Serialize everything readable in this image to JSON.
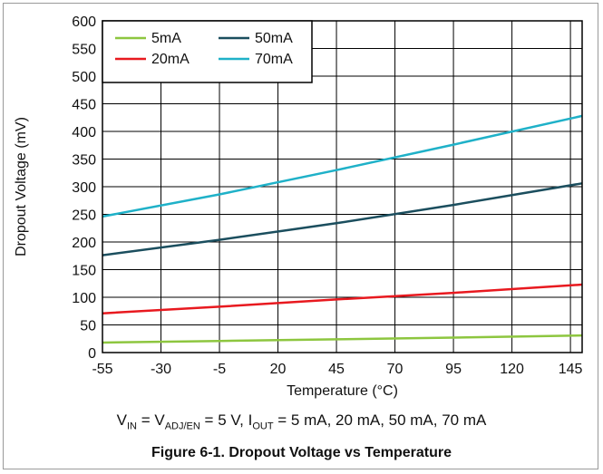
{
  "chart_data": {
    "type": "line",
    "xlabel": "Temperature (°C)",
    "ylabel": "Dropout Voltage (mV)",
    "xlim": [
      -55,
      150
    ],
    "ylim": [
      0,
      600
    ],
    "xticks": [
      -55,
      -30,
      -5,
      20,
      45,
      70,
      95,
      120,
      145
    ],
    "yticks": [
      0,
      50,
      100,
      150,
      200,
      250,
      300,
      350,
      400,
      450,
      500,
      550,
      600
    ],
    "grid": true,
    "legend_position": "top-left",
    "series": [
      {
        "name": "5mA",
        "color": "#8dc63f",
        "x": [
          -55,
          -5,
          45,
          95,
          150
        ],
        "y": [
          18,
          21,
          24,
          27,
          31
        ]
      },
      {
        "name": "20mA",
        "color": "#e8191f",
        "x": [
          -55,
          -5,
          45,
          95,
          150
        ],
        "y": [
          71,
          83,
          96,
          108,
          123
        ]
      },
      {
        "name": "50mA",
        "color": "#1b4e5e",
        "x": [
          -55,
          -5,
          45,
          95,
          150
        ],
        "y": [
          176,
          204,
          234,
          267,
          306
        ]
      },
      {
        "name": "70mA",
        "color": "#1fb1c8",
        "x": [
          -55,
          -5,
          45,
          95,
          150
        ],
        "y": [
          246,
          286,
          330,
          376,
          428
        ]
      }
    ]
  },
  "conditions": {
    "v_in": "V",
    "v_in_sub": "IN",
    "v_adj": " = V",
    "v_adj_sub": "ADJ/EN",
    "i_out": " = 5 V, I",
    "i_out_sub": "OUT",
    "rest": " = 5 mA, 20 mA, 50 mA, 70 mA"
  },
  "caption": "Figure 6-1. Dropout Voltage vs Temperature"
}
